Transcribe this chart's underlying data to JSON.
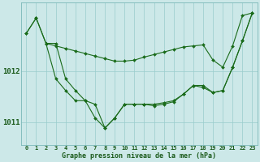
{
  "background_color": "#cce8e8",
  "plot_bg_color": "#cce8e8",
  "grid_color": "#99cccc",
  "line_color": "#1a6b1a",
  "marker_color": "#1a6b1a",
  "title": "Graphe pression niveau de la mer (hPa)",
  "yticks": [
    1011,
    1012
  ],
  "ylim": [
    1010.55,
    1013.35
  ],
  "xlim": [
    -0.5,
    23.5
  ],
  "line1_x": [
    0,
    1,
    2,
    3,
    4,
    5,
    6,
    7,
    8,
    9,
    10,
    11,
    12,
    13,
    14,
    15,
    16,
    17,
    18,
    19,
    20,
    21,
    22,
    23
  ],
  "line1_y": [
    1012.75,
    1013.05,
    1012.55,
    1012.5,
    1012.45,
    1012.4,
    1012.35,
    1012.3,
    1012.25,
    1012.2,
    1012.2,
    1012.22,
    1012.28,
    1012.33,
    1012.38,
    1012.43,
    1012.48,
    1012.5,
    1012.52,
    1012.22,
    1012.08,
    1012.5,
    1013.1,
    1013.15
  ],
  "line2_x": [
    0,
    1,
    2,
    3,
    4,
    5,
    6,
    7,
    8,
    9,
    10,
    11,
    12,
    13,
    14,
    15,
    16,
    17,
    18,
    19,
    20,
    21,
    22,
    23
  ],
  "line2_y": [
    1012.75,
    1013.05,
    1012.55,
    1012.55,
    1011.85,
    1011.62,
    1011.42,
    1011.35,
    1010.88,
    1011.08,
    1011.35,
    1011.35,
    1011.35,
    1011.32,
    1011.35,
    1011.4,
    1011.55,
    1011.72,
    1011.72,
    1011.58,
    1011.62,
    1012.08,
    1012.6,
    1013.15
  ],
  "line3_x": [
    2,
    3,
    4,
    5,
    6,
    7,
    8,
    9,
    10,
    11,
    12,
    13,
    14,
    15,
    16,
    17,
    18,
    19,
    20,
    21,
    22,
    23
  ],
  "line3_y": [
    1012.55,
    1011.85,
    1011.62,
    1011.42,
    1011.42,
    1011.08,
    1010.88,
    1011.08,
    1011.35,
    1011.35,
    1011.35,
    1011.35,
    1011.38,
    1011.42,
    1011.55,
    1011.72,
    1011.68,
    1011.58,
    1011.62,
    1012.08,
    1012.6,
    1013.15
  ],
  "xlabel_ticks": [
    "0",
    "1",
    "2",
    "3",
    "4",
    "5",
    "6",
    "7",
    "8",
    "9",
    "10",
    "11",
    "12",
    "13",
    "14",
    "15",
    "16",
    "17",
    "18",
    "19",
    "20",
    "21",
    "22",
    "23"
  ],
  "tick_fontsize": 5.0,
  "ytick_fontsize": 6.5,
  "title_fontsize": 6.0,
  "lw": 0.8,
  "ms": 2.0
}
